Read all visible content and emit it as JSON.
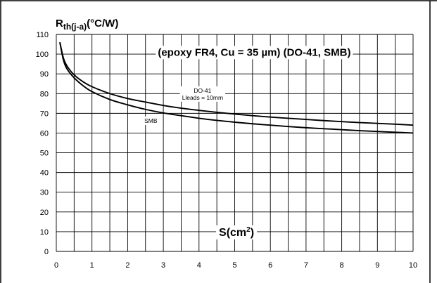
{
  "chart_data": {
    "type": "line",
    "title": "(epoxy FR4, Cu = 35 µm) (DO-41, SMB)",
    "ylabel": {
      "main": "R",
      "sub": "th(j-a)",
      "unit": "(°C/W)"
    },
    "xlabel": {
      "main": "S(cm",
      "sup": "2",
      "close": ")"
    },
    "xlim": [
      0,
      10
    ],
    "ylim": [
      0,
      110
    ],
    "xticks": [
      0,
      1,
      2,
      3,
      4,
      5,
      6,
      7,
      8,
      9,
      10
    ],
    "yticks": [
      0,
      10,
      20,
      30,
      40,
      50,
      60,
      70,
      80,
      90,
      100,
      110
    ],
    "grid": true,
    "series": [
      {
        "name": "DO-41",
        "annotation_lines": [
          "DO-41",
          "Lleads = 10mm"
        ],
        "x": [
          0.1,
          0.2,
          0.3,
          0.5,
          0.75,
          1,
          1.5,
          2,
          2.5,
          3,
          3.5,
          4,
          4.5,
          5,
          5.5,
          6,
          6.5,
          7,
          7.5,
          8,
          8.5,
          9,
          9.5,
          10
        ],
        "y": [
          106,
          98,
          94,
          89.5,
          86,
          83.5,
          80,
          77.5,
          75.7,
          74,
          72.6,
          71.5,
          70.5,
          69.6,
          68.8,
          68.1,
          67.5,
          66.9,
          66.3,
          65.8,
          65.3,
          64.9,
          64.5,
          64
        ]
      },
      {
        "name": "SMB",
        "annotation_lines": [
          "SMB"
        ],
        "x": [
          0.1,
          0.2,
          0.3,
          0.5,
          0.75,
          1,
          1.5,
          2,
          2.5,
          3,
          3.5,
          4,
          4.5,
          5,
          5.5,
          6,
          6.5,
          7,
          7.5,
          8,
          8.5,
          9,
          9.5,
          10
        ],
        "y": [
          106,
          97,
          92.5,
          88,
          84,
          81,
          77,
          74.3,
          72,
          70.2,
          68.8,
          67.5,
          66.4,
          65.5,
          64.7,
          64,
          63.3,
          62.7,
          62.2,
          61.7,
          61.2,
          60.8,
          60.4,
          60
        ]
      }
    ]
  }
}
